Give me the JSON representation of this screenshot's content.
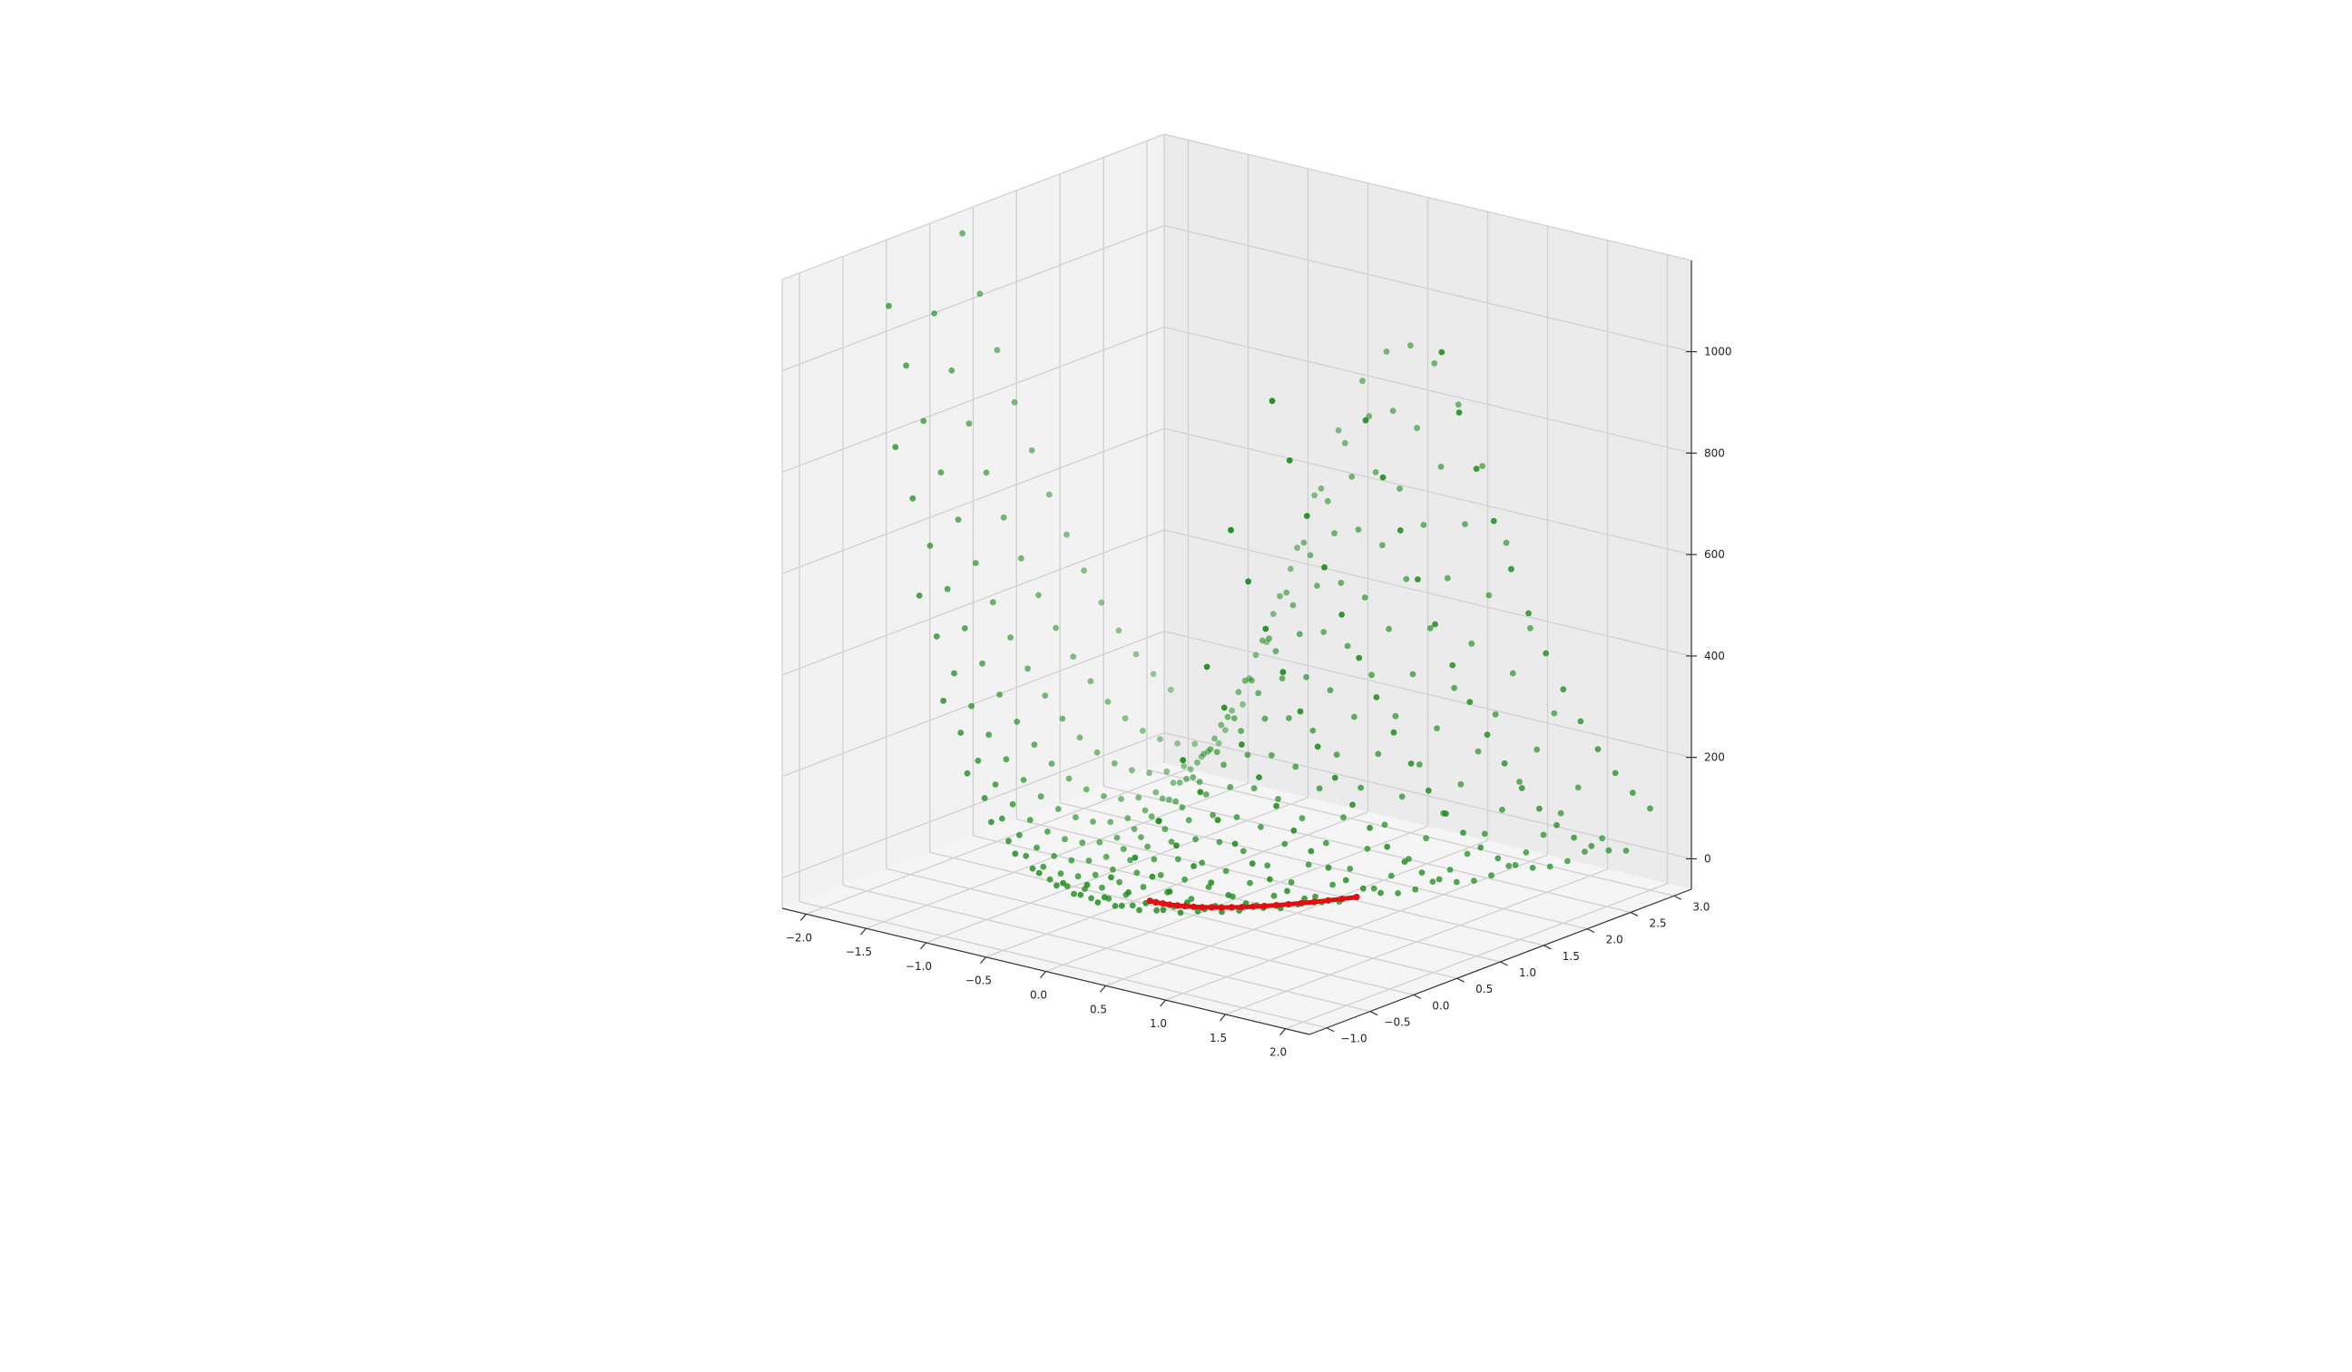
{
  "chart_data": {
    "type": "scatter",
    "projection": "3d",
    "title": "",
    "xlabel": "",
    "ylabel": "",
    "zlabel": "",
    "xlim": [
      -2.2,
      2.2
    ],
    "ylim": [
      -1.2,
      3.2
    ],
    "zlim": [
      -60,
      1180
    ],
    "x_ticks": [
      -2.0,
      -1.5,
      -1.0,
      -0.5,
      0.0,
      0.5,
      1.0,
      1.5,
      2.0
    ],
    "x_tick_labels": [
      "−2.0",
      "−1.5",
      "−1.0",
      "−0.5",
      "0.0",
      "0.5",
      "1.0",
      "1.5",
      "2.0"
    ],
    "y_ticks": [
      -1.0,
      -0.5,
      0.0,
      0.5,
      1.0,
      1.5,
      2.0,
      2.5,
      3.0
    ],
    "y_tick_labels": [
      "−1.0",
      "−0.5",
      "0.0",
      "0.5",
      "1.0",
      "1.5",
      "2.0",
      "2.5",
      "3.0"
    ],
    "z_ticks": [
      0,
      200,
      400,
      600,
      800,
      1000
    ],
    "z_tick_labels": [
      "0",
      "200",
      "400",
      "600",
      "800",
      "1000"
    ],
    "grid": true,
    "legend": "none",
    "series": [
      {
        "kind": "surface-grid",
        "color": "#1a8a1a",
        "function": "rosenbrock (1 - x)^2 + 100 (y - x^2)^2",
        "x_range": [
          -2.0,
          2.0
        ],
        "y_range": [
          -1.0,
          3.0
        ],
        "x_count": 21,
        "y_count": 21
      },
      {
        "kind": "path",
        "color": "#e01010",
        "points": [
          [
            0.0,
            0.0,
            1.0
          ],
          [
            0.05,
            0.0,
            0.9
          ],
          [
            0.1,
            0.01,
            0.8
          ],
          [
            0.15,
            0.02,
            0.7
          ],
          [
            0.2,
            0.04,
            0.6
          ],
          [
            0.25,
            0.06,
            0.6
          ],
          [
            0.3,
            0.09,
            0.5
          ],
          [
            0.35,
            0.12,
            0.4
          ],
          [
            0.4,
            0.16,
            0.4
          ],
          [
            0.45,
            0.2,
            0.3
          ],
          [
            0.5,
            0.25,
            0.3
          ],
          [
            0.55,
            0.3,
            0.2
          ],
          [
            0.6,
            0.36,
            0.2
          ],
          [
            0.65,
            0.42,
            0.1
          ],
          [
            0.7,
            0.49,
            0.1
          ],
          [
            0.75,
            0.56,
            0.1
          ],
          [
            0.8,
            0.64,
            0.0
          ],
          [
            0.85,
            0.72,
            0.0
          ],
          [
            0.9,
            0.81,
            0.0
          ],
          [
            0.95,
            0.9,
            0.0
          ],
          [
            1.0,
            1.0,
            0.0
          ]
        ]
      }
    ]
  }
}
